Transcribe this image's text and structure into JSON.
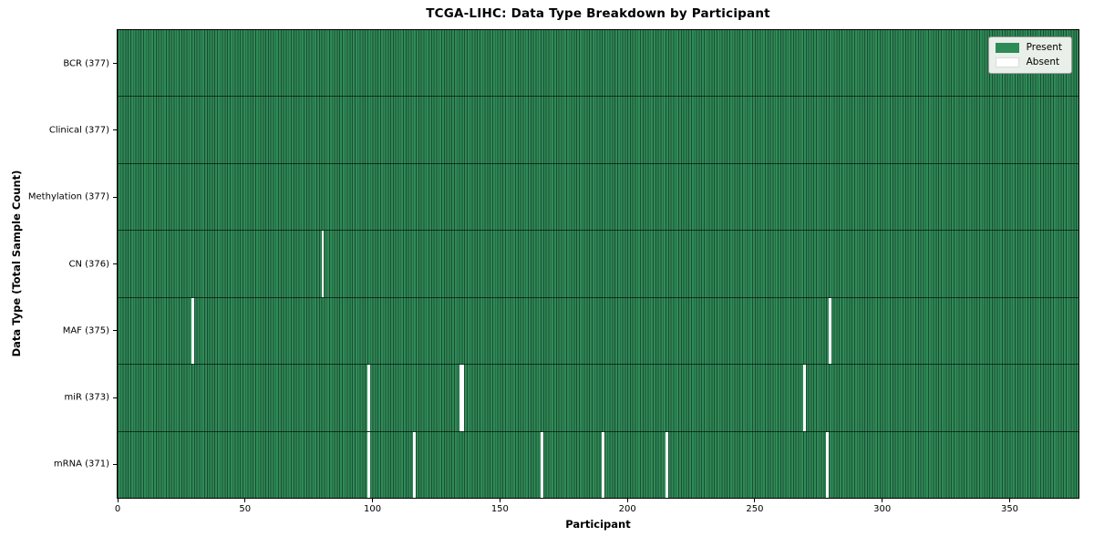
{
  "colors": {
    "present": "#2e8b57",
    "absent": "#ffffff",
    "cell_edge": "#1d4c33",
    "row_divider": "#14281c",
    "legend_background": "#e9efe9",
    "axis": "#000000"
  },
  "chart_data": {
    "type": "heatmap",
    "title": "TCGA-LIHC: Data Type Breakdown by Participant",
    "xlabel": "Participant",
    "ylabel": "Data Type (Total Sample Count)",
    "x_range": [
      0,
      377
    ],
    "x_ticks": [
      0,
      50,
      100,
      150,
      200,
      250,
      300,
      350
    ],
    "legend": [
      "Present",
      "Absent"
    ],
    "legend_position": "upper right",
    "grid": false,
    "rows": [
      {
        "data_type": "BCR",
        "label": "BCR (377)",
        "total": 377,
        "absent_participants": []
      },
      {
        "data_type": "Clinical",
        "label": "Clinical (377)",
        "total": 377,
        "absent_participants": []
      },
      {
        "data_type": "Methylation",
        "label": "Methylation (377)",
        "total": 377,
        "absent_participants": []
      },
      {
        "data_type": "CN",
        "label": "CN (376)",
        "total": 376,
        "absent_participants": [
          80
        ]
      },
      {
        "data_type": "MAF",
        "label": "MAF (375)",
        "total": 375,
        "absent_participants": [
          29,
          279
        ]
      },
      {
        "data_type": "miR",
        "label": "miR (373)",
        "total": 373,
        "absent_participants": [
          98,
          134,
          135,
          269
        ]
      },
      {
        "data_type": "mRNA",
        "label": "mRNA (371)",
        "total": 371,
        "absent_participants": [
          98,
          116,
          166,
          190,
          215,
          278
        ]
      }
    ]
  }
}
